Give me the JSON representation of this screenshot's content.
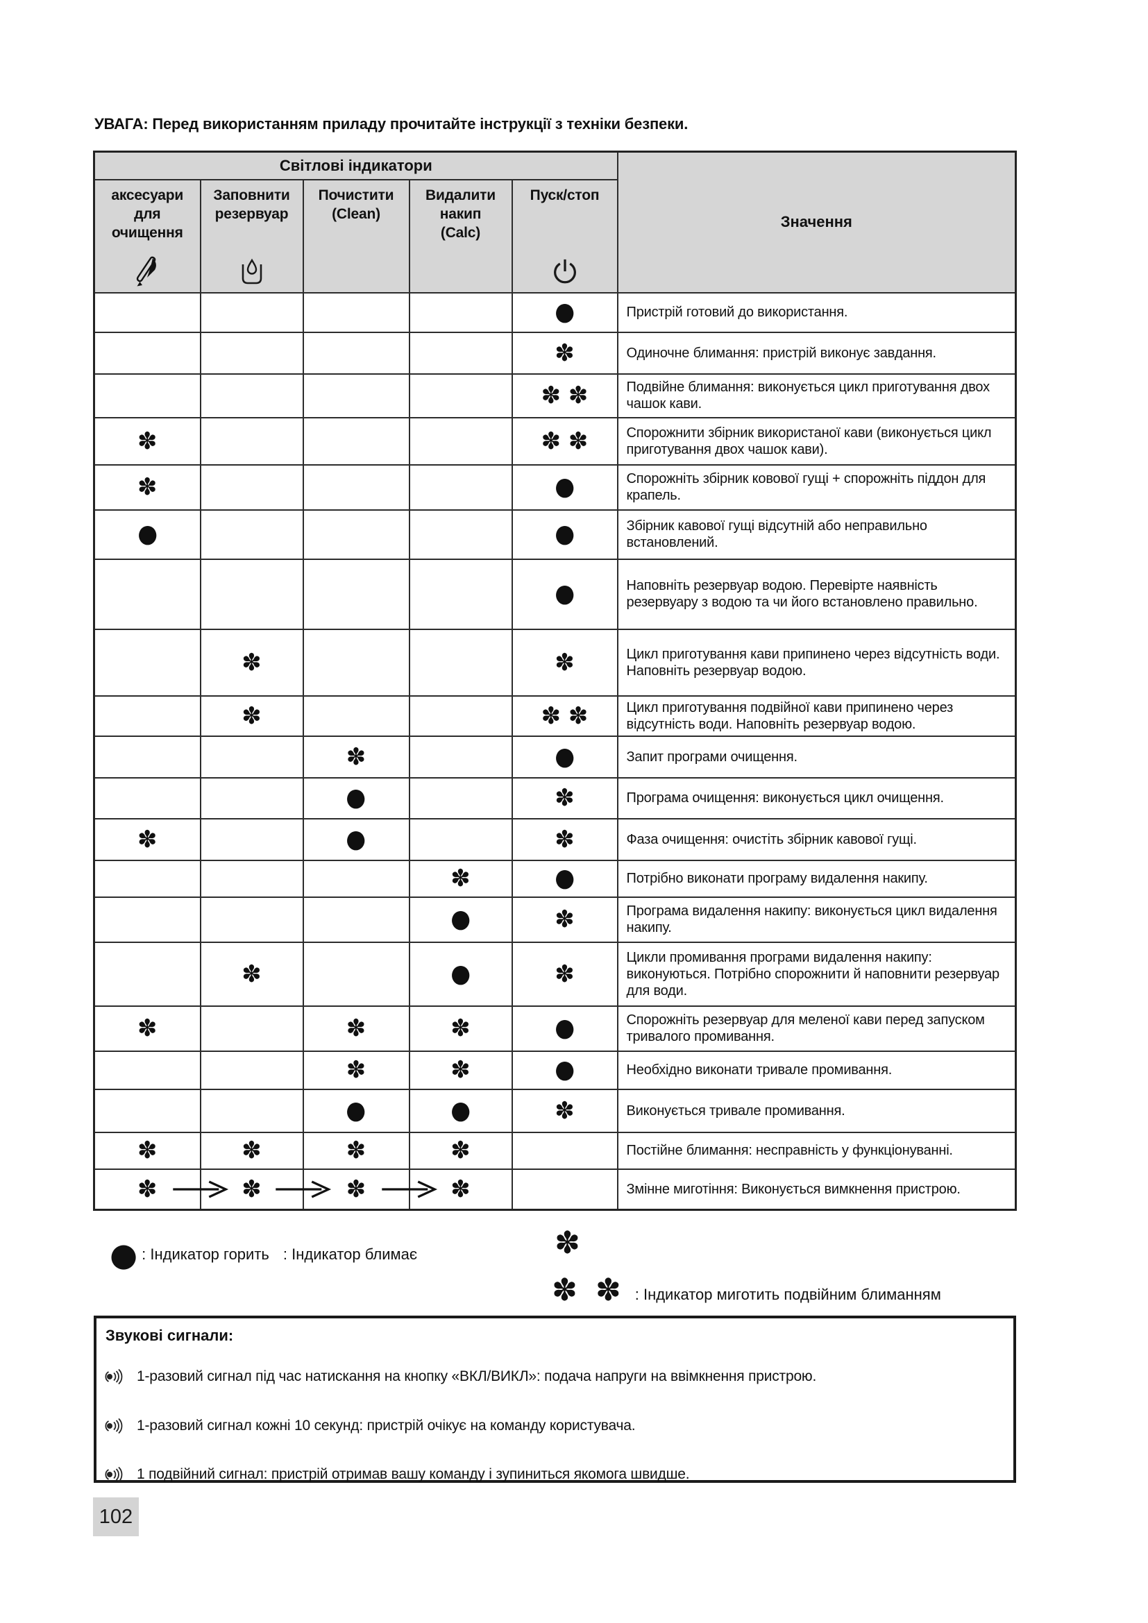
{
  "page": {
    "warning_title": "УВАГА: Перед використанням приладу прочитайте інструкції з техніки безпеки.",
    "page_number": "102"
  },
  "icons": {
    "accessories": "cleaning-accessory-icon",
    "tank": "water-tank-icon",
    "start": "power-icon",
    "sound": "speaker-icon",
    "sequence_arrow": "arrow-icon"
  },
  "table": {
    "group_header": "Світлові індикатори",
    "meaning_header": "Значення",
    "columns": [
      {
        "label": "аксесуари\nдля\nочищення",
        "icon": "cleaning-accessory-icon"
      },
      {
        "label": "Заповнити\nрезервуар",
        "icon": "water-tank-icon"
      },
      {
        "label": "Почистити\n(Clean)",
        "icon": ""
      },
      {
        "label": "Видалити\nнакип\n(Calc)",
        "icon": ""
      },
      {
        "label": "Пуск/стоп",
        "icon": "power-icon"
      }
    ],
    "symbols": {
      "dot": "●",
      "blink": "✽",
      "blink2": "✽ ✽"
    },
    "rows": [
      {
        "cells": [
          "",
          "",
          "",
          "",
          "dot"
        ],
        "meaning": "Пристрій готовий до використання."
      },
      {
        "cells": [
          "",
          "",
          "",
          "",
          "blink"
        ],
        "meaning": "Одиночне блимання: пристрій виконує завдання."
      },
      {
        "cells": [
          "",
          "",
          "",
          "",
          "blink2"
        ],
        "meaning": "Подвійне блимання: виконується цикл приготування двох чашок кави."
      },
      {
        "cells": [
          "blink",
          "",
          "",
          "",
          "blink2"
        ],
        "meaning": "Спорожнити збірник використаної кави (виконується цикл приготування двох чашок кави)."
      },
      {
        "cells": [
          "blink",
          "",
          "",
          "",
          "dot"
        ],
        "meaning": "Спорожніть збірник ковової гущі + спорожніть піддон для крапель."
      },
      {
        "cells": [
          "dot",
          "",
          "",
          "",
          "dot"
        ],
        "meaning": "Збірник кавової гущі відсутній або неправильно встановлений."
      },
      {
        "cells": [
          "",
          "",
          "",
          "",
          "dot"
        ],
        "meaning": "Наповніть резервуар водою. Перевірте наявність резервуару з водою та чи його встановлено правильно."
      },
      {
        "cells": [
          "",
          "blink",
          "",
          "",
          "blink"
        ],
        "meaning": "Цикл приготування кави припинено через відсутність води.\nНаповніть резервуар водою."
      },
      {
        "cells": [
          "",
          "blink",
          "",
          "",
          "blink2"
        ],
        "meaning": "Цикл приготування подвійної кави припинено через відсутність води. Наповніть резервуар водою."
      },
      {
        "cells": [
          "",
          "",
          "blink",
          "",
          "dot"
        ],
        "meaning": "Запит програми очищення."
      },
      {
        "cells": [
          "",
          "",
          "dot",
          "",
          "blink"
        ],
        "meaning": "Програма очищення: виконується цикл очищення."
      },
      {
        "cells": [
          "blink",
          "",
          "dot",
          "",
          "blink"
        ],
        "meaning": "Фаза очищення: очистіть збірник кавової гущі."
      },
      {
        "cells": [
          "",
          "",
          "",
          "blink",
          "dot"
        ],
        "meaning": "Потрібно виконати програму видалення накипу."
      },
      {
        "cells": [
          "",
          "",
          "",
          "dot",
          "blink"
        ],
        "meaning": "Програма видалення накипу: виконується цикл видалення накипу."
      },
      {
        "cells": [
          "",
          "blink",
          "",
          "dot",
          "blink"
        ],
        "meaning": "Цикли промивання програми видалення накипу: виконуються. Потрібно спорожнити й наповнити резервуар для води."
      },
      {
        "cells": [
          "blink",
          "",
          "blink",
          "blink",
          "dot"
        ],
        "meaning": "Спорожніть резервуар для меленої кави перед запуском тривалого промивання."
      },
      {
        "cells": [
          "",
          "",
          "blink",
          "blink",
          "dot"
        ],
        "meaning": "Необхідно виконати тривале промивання."
      },
      {
        "cells": [
          "",
          "",
          "dot",
          "dot",
          "blink"
        ],
        "meaning": "Виконується тривале промивання."
      },
      {
        "cells": [
          "blink",
          "blink",
          "blink",
          "blink",
          ""
        ],
        "meaning": "Постійне блимання: несправність у функціонуванні."
      },
      {
        "cells": [
          "blink",
          "blink",
          "blink",
          "blink",
          ""
        ],
        "sequence": true,
        "meaning": "Змінне миготіння: Виконується вимкнення пристрою."
      }
    ]
  },
  "legend": {
    "on_label": ": Індикатор горить",
    "blink_label": ": Індикатор блимає",
    "double_label": ": Індикатор миготить подвійним блиманням"
  },
  "sound_box": {
    "title": "Звукові сигнали:",
    "items": [
      "1-разовий сигнал під час натискання на кнопку «ВКЛ/ВИКЛ»: подача напруги на ввімкнення пристрою.",
      "1-разовий сигнал кожні 10 секунд: пристрій очікує на команду користувача.",
      "1 подвійний сигнал: пристрій отримав вашу команду і зупиниться якомога швидше."
    ]
  }
}
